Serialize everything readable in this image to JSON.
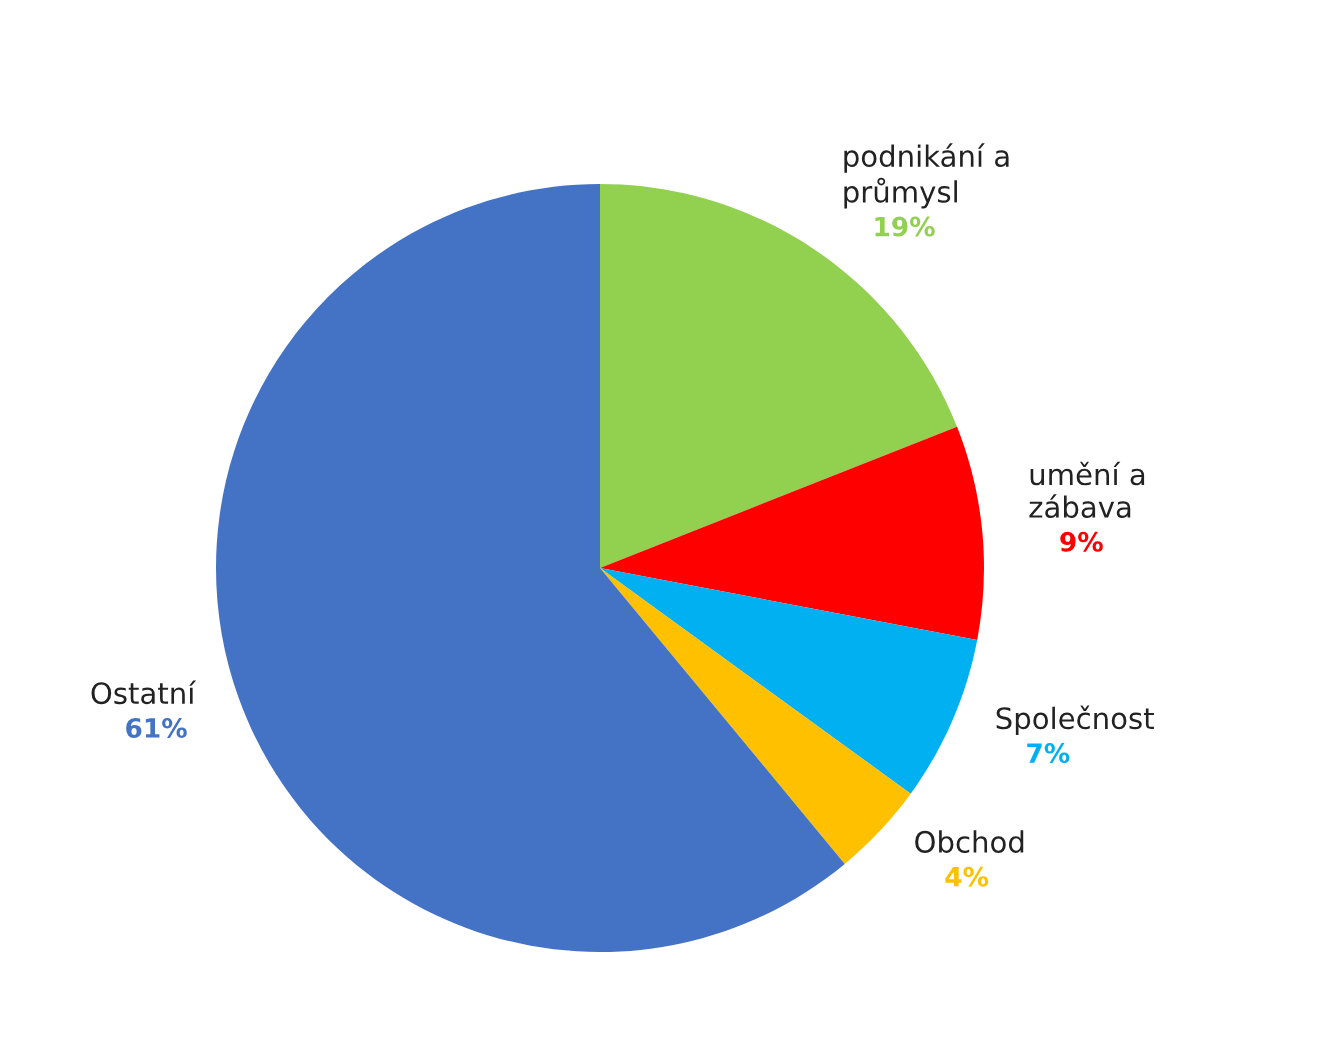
{
  "chart_data": {
    "type": "pie",
    "categories": [
      "podnikání a\nprůmysl",
      "umění a\nzábava",
      "Společnost",
      "Obchod",
      "Ostatní"
    ],
    "values": [
      19,
      9,
      7,
      4,
      61
    ],
    "value_labels": [
      "19%",
      "9%",
      "7%",
      "4%",
      "61%"
    ],
    "colors": [
      "#92d050",
      "#ff0000",
      "#00b0f0",
      "#ffc000",
      "#4472c4"
    ]
  }
}
